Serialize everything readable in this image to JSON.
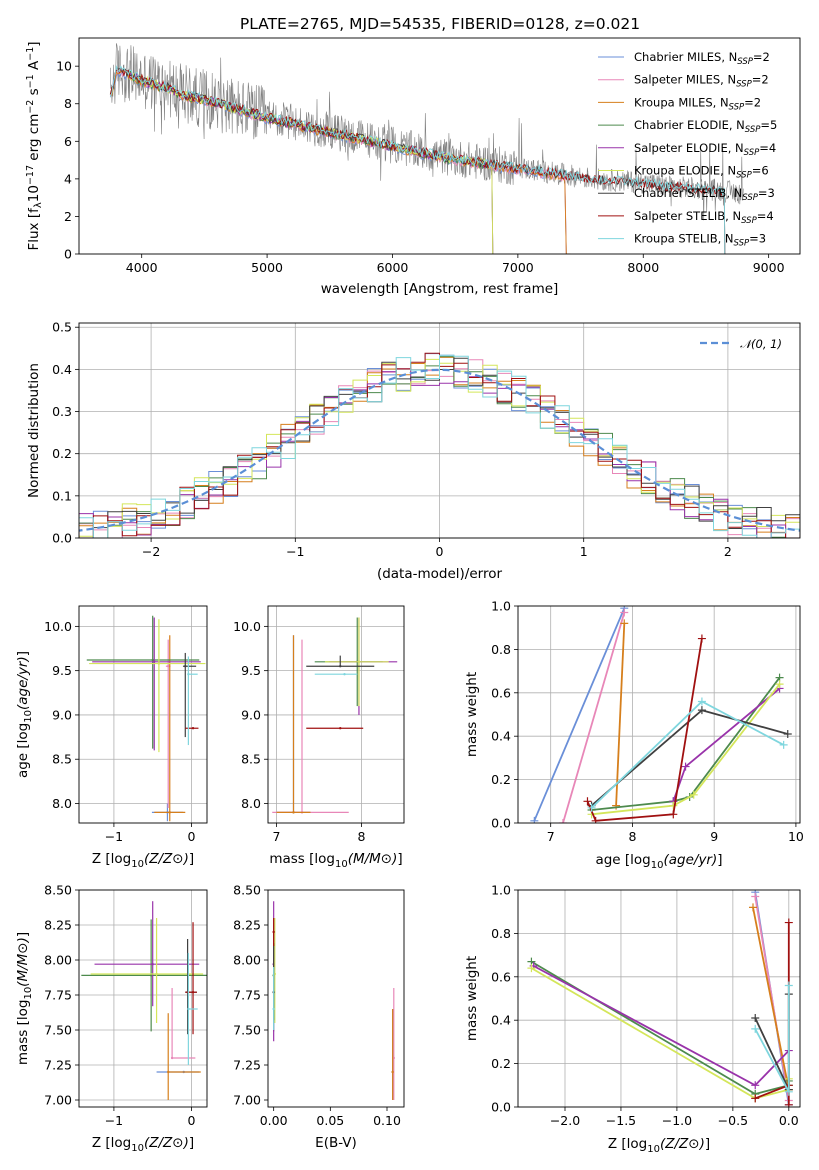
{
  "figure": {
    "title": "PLATE=2765, MJD=54535, FIBERID=0128, z=0.021"
  },
  "chart_data": [
    {
      "id": "spectrum",
      "type": "line",
      "xlabel": "wavelength [Angstrom, rest frame]",
      "ylabel": "Flux [f_λ10^-17 erg cm^-2 s^-1 A^-1]",
      "xlim": [
        3500,
        9250
      ],
      "ylim": [
        0,
        11.5
      ],
      "xticks": [
        4000,
        5000,
        6000,
        7000,
        8000,
        9000
      ],
      "yticks": [
        0,
        2,
        4,
        6,
        8,
        10
      ],
      "grid": false,
      "legend_position": "top-right",
      "observed": {
        "color": "#808080",
        "x": [
          3750,
          3800,
          3900,
          4000,
          4100,
          4200,
          4300,
          4400,
          4500,
          4600,
          4700,
          4800,
          4900,
          5000,
          5200,
          5400,
          5600,
          5800,
          6000,
          6200,
          6400,
          6600,
          6800,
          7000,
          7200,
          7400,
          7600,
          7800,
          8000,
          8200,
          8400,
          8600,
          8800
        ],
        "y": [
          8.5,
          9.8,
          9.6,
          9.3,
          9.1,
          8.9,
          8.6,
          8.4,
          8.3,
          8.1,
          7.9,
          7.7,
          7.5,
          7.3,
          7.0,
          6.7,
          6.4,
          6.1,
          5.8,
          5.5,
          5.2,
          5.0,
          4.8,
          4.6,
          4.4,
          4.2,
          4.0,
          3.9,
          3.8,
          3.6,
          3.5,
          3.4,
          3.2
        ]
      },
      "models": [
        {
          "name": "Chabrier MILES, N_SSP=2",
          "color": "#6a8fd8",
          "range": [
            3750,
            7420
          ]
        },
        {
          "name": "Salpeter MILES, N_SSP=2",
          "color": "#e887b8",
          "range": [
            3750,
            7420
          ]
        },
        {
          "name": "Kroupa MILES, N_SSP=2",
          "color": "#d67f1c",
          "range": [
            3750,
            7420
          ]
        },
        {
          "name": "Chabrier ELODIE, N_SSP=5",
          "color": "#4d8a4d",
          "range": [
            3900,
            6800
          ]
        },
        {
          "name": "Salpeter ELODIE, N_SSP=4",
          "color": "#9933aa",
          "range": [
            3900,
            6800
          ]
        },
        {
          "name": "Kroupa ELODIE, N_SSP=6",
          "color": "#d4e65a",
          "range": [
            3900,
            6800
          ]
        },
        {
          "name": "Chabrier STELIB, N_SSP=3",
          "color": "#404040",
          "range": [
            3750,
            8650
          ]
        },
        {
          "name": "Salpeter STELIB, N_SSP=4",
          "color": "#a01010",
          "range": [
            3750,
            8650
          ]
        },
        {
          "name": "Kroupa STELIB, N_SSP=3",
          "color": "#7fd6de",
          "range": [
            3750,
            8650
          ]
        }
      ]
    },
    {
      "id": "residuals",
      "type": "line",
      "xlabel": "(data-model)/error",
      "ylabel": "Normed distribution",
      "xlim": [
        -2.5,
        2.5
      ],
      "ylim": [
        0,
        0.51
      ],
      "xticks": [
        -2,
        -1,
        0,
        1,
        2
      ],
      "yticks": [
        0.0,
        0.1,
        0.2,
        0.3,
        0.4,
        0.5
      ],
      "grid": true,
      "legend_position": "top-right",
      "reference": {
        "name": "𝒩(0, 1)",
        "color": "#5b8fd6",
        "style": "dashed"
      },
      "bin_width": 0.1
    },
    {
      "id": "age_vs_Z",
      "type": "scatter",
      "xlabel": "Z [log10(Z/Z⊙)]",
      "ylabel": "age  [log10(age/yr)]",
      "xlim": [
        -1.45,
        0.2
      ],
      "ylim": [
        7.78,
        10.23
      ],
      "xticks": [
        -1,
        0
      ],
      "yticks": [
        8.0,
        8.5,
        9.0,
        9.5,
        10.0
      ],
      "grid": true,
      "points": [
        {
          "color": "#6a8fd8",
          "x": -0.31,
          "y": 7.9,
          "xerr": [
            0.2,
            0.2
          ],
          "yerr": [
            0.1,
            0.1
          ]
        },
        {
          "color": "#e887b8",
          "x": -0.3,
          "y": 9.55,
          "xerr": [
            0.03,
            0.03
          ],
          "yerr": [
            1.6,
            0.3
          ]
        },
        {
          "color": "#d67f1c",
          "x": -0.28,
          "y": 7.9,
          "xerr": [
            0.2,
            0.2
          ],
          "yerr": [
            0.1,
            2.0
          ]
        },
        {
          "color": "#4d8a4d",
          "x": -0.5,
          "y": 9.62,
          "xerr": [
            0.85,
            0.6
          ],
          "yerr": [
            1.0,
            0.5
          ]
        },
        {
          "color": "#9933aa",
          "x": -0.48,
          "y": 9.6,
          "xerr": [
            0.8,
            0.6
          ],
          "yerr": [
            1.0,
            0.5
          ]
        },
        {
          "color": "#d4e65a",
          "x": -0.42,
          "y": 9.58,
          "xerr": [
            0.9,
            0.6
          ],
          "yerr": [
            1.0,
            0.5
          ]
        },
        {
          "color": "#404040",
          "x": -0.08,
          "y": 9.55,
          "xerr": [
            0.03,
            0.14
          ],
          "yerr": [
            0.8,
            0.15
          ]
        },
        {
          "color": "#a01010",
          "x": 0.02,
          "y": 8.85,
          "xerr": [
            0.1,
            0.07
          ],
          "yerr": [
            0.0,
            0.0
          ]
        },
        {
          "color": "#7fd6de",
          "x": -0.04,
          "y": 9.46,
          "xerr": [
            0.0,
            0.12
          ],
          "yerr": [
            0.8,
            0.2
          ]
        }
      ]
    },
    {
      "id": "age_vs_mass",
      "type": "scatter",
      "xlabel": "mass [log10(M/M⊙)]",
      "ylabel": "",
      "xlim": [
        6.9,
        8.5
      ],
      "ylim": [
        7.78,
        10.23
      ],
      "xticks": [
        7,
        8
      ],
      "yticks": [
        8.0,
        8.5,
        9.0,
        9.5,
        10.0
      ],
      "grid": true,
      "points": [
        {
          "color": "#6a8fd8",
          "x": 7.2,
          "y": 7.9,
          "xerr": [
            0.2,
            0.2
          ],
          "yerr": [
            0.0,
            2.0
          ]
        },
        {
          "color": "#e887b8",
          "x": 7.3,
          "y": 7.9,
          "xerr": [
            0.35,
            0.55
          ],
          "yerr": [
            0.0,
            1.95
          ]
        },
        {
          "color": "#d67f1c",
          "x": 7.2,
          "y": 7.9,
          "xerr": [
            0.2,
            0.2
          ],
          "yerr": [
            0.0,
            2.0
          ]
        },
        {
          "color": "#4d8a4d",
          "x": 7.95,
          "y": 9.6,
          "xerr": [
            0.5,
            0.3
          ],
          "yerr": [
            0.5,
            0.5
          ]
        },
        {
          "color": "#9933aa",
          "x": 7.97,
          "y": 9.6,
          "xerr": [
            0.35,
            0.45
          ],
          "yerr": [
            0.6,
            0.5
          ]
        },
        {
          "color": "#d4e65a",
          "x": 7.97,
          "y": 9.6,
          "xerr": [
            0.4,
            0.35
          ],
          "yerr": [
            0.5,
            0.5
          ]
        },
        {
          "color": "#404040",
          "x": 7.75,
          "y": 9.55,
          "xerr": [
            0.4,
            0.4
          ],
          "yerr": [
            0.0,
            0.12
          ]
        },
        {
          "color": "#a01010",
          "x": 7.75,
          "y": 8.85,
          "xerr": [
            0.4,
            0.27
          ],
          "yerr": [
            0.0,
            0.0
          ]
        },
        {
          "color": "#7fd6de",
          "x": 7.8,
          "y": 9.46,
          "xerr": [
            0.35,
            0.15
          ],
          "yerr": [
            0.0,
            0.0
          ]
        }
      ]
    },
    {
      "id": "weight_vs_age",
      "type": "line",
      "xlabel": "age  [log10(age/yr)]",
      "ylabel": "mass weight",
      "xlim": [
        6.6,
        10.05
      ],
      "ylim": [
        0,
        1
      ],
      "xticks": [
        7,
        8,
        9,
        10
      ],
      "yticks": [
        0.0,
        0.2,
        0.4,
        0.6,
        0.8,
        1.0
      ],
      "grid": true,
      "series": [
        {
          "color": "#6a8fd8",
          "x": [
            6.8,
            7.9
          ],
          "y": [
            0.01,
            0.99
          ]
        },
        {
          "color": "#e887b8",
          "x": [
            7.15,
            7.9
          ],
          "y": [
            0.0,
            0.97
          ]
        },
        {
          "color": "#d67f1c",
          "x": [
            7.8,
            7.9
          ],
          "y": [
            0.08,
            0.92
          ]
        },
        {
          "color": "#4d8a4d",
          "x": [
            7.5,
            8.5,
            8.7,
            9.8
          ],
          "y": [
            0.06,
            0.1,
            0.12,
            0.67
          ]
        },
        {
          "color": "#9933aa",
          "x": [
            8.5,
            8.65,
            9.8
          ],
          "y": [
            0.1,
            0.26,
            0.62
          ]
        },
        {
          "color": "#d4e65a",
          "x": [
            7.5,
            8.5,
            8.75,
            9.8
          ],
          "y": [
            0.04,
            0.08,
            0.13,
            0.64
          ]
        },
        {
          "color": "#404040",
          "x": [
            7.5,
            8.85,
            9.9
          ],
          "y": [
            0.08,
            0.52,
            0.41
          ]
        },
        {
          "color": "#a01010",
          "x": [
            7.45,
            7.55,
            8.5,
            8.85
          ],
          "y": [
            0.1,
            0.01,
            0.04,
            0.85
          ]
        },
        {
          "color": "#7fd6de",
          "x": [
            7.5,
            8.85,
            9.85
          ],
          "y": [
            0.07,
            0.56,
            0.36
          ]
        }
      ]
    },
    {
      "id": "mass_vs_Z",
      "type": "scatter",
      "xlabel": "Z [log10(Z/Z⊙)]",
      "ylabel": "mass [log10(M/M⊙)]",
      "xlim": [
        -1.45,
        0.2
      ],
      "ylim": [
        6.95,
        8.5
      ],
      "xticks": [
        -1,
        0
      ],
      "yticks": [
        7.0,
        7.25,
        7.5,
        7.75,
        8.0,
        8.25,
        8.5
      ],
      "grid": true,
      "points": [
        {
          "color": "#6a8fd8",
          "x": -0.1,
          "y": 7.2,
          "xerr": [
            0.35,
            0.2
          ],
          "yerr": [
            0.0,
            0.0
          ]
        },
        {
          "color": "#e887b8",
          "x": -0.25,
          "y": 7.3,
          "xerr": [
            0.0,
            0.3
          ],
          "yerr": [
            0.0,
            0.5
          ]
        },
        {
          "color": "#d67f1c",
          "x": -0.3,
          "y": 7.2,
          "xerr": [
            0.0,
            0.42
          ],
          "yerr": [
            0.2,
            0.42
          ]
        },
        {
          "color": "#4d8a4d",
          "x": -0.52,
          "y": 7.89,
          "xerr": [
            0.9,
            0.72
          ],
          "yerr": [
            0.4,
            0.4
          ]
        },
        {
          "color": "#9933aa",
          "x": -0.5,
          "y": 7.97,
          "xerr": [
            0.75,
            0.6
          ],
          "yerr": [
            0.3,
            0.45
          ]
        },
        {
          "color": "#d4e65a",
          "x": -0.45,
          "y": 7.9,
          "xerr": [
            0.85,
            0.6
          ],
          "yerr": [
            0.35,
            0.4
          ]
        },
        {
          "color": "#404040",
          "x": -0.05,
          "y": 7.77,
          "xerr": [
            0.03,
            0.12
          ],
          "yerr": [
            0.3,
            0.38
          ]
        },
        {
          "color": "#a01010",
          "x": 0.02,
          "y": 7.77,
          "xerr": [
            0.1,
            0.05
          ],
          "yerr": [
            0.3,
            0.5
          ]
        },
        {
          "color": "#7fd6de",
          "x": -0.04,
          "y": 7.65,
          "xerr": [
            0.0,
            0.12
          ],
          "yerr": [
            0.4,
            0.4
          ]
        }
      ]
    },
    {
      "id": "mass_vs_EBV",
      "type": "scatter",
      "xlabel": "E(B-V)",
      "ylabel": "",
      "xlim": [
        -0.005,
        0.115
      ],
      "ylim": [
        6.95,
        8.5
      ],
      "xticks": [
        0.0,
        0.05,
        0.1
      ],
      "xticklabels": [
        "0.00",
        "0.05",
        "0.10"
      ],
      "yticks": [
        7.0,
        7.25,
        7.5,
        7.75,
        8.0,
        8.25,
        8.5
      ],
      "grid": false,
      "points": [
        {
          "color": "#6a8fd8",
          "x": 0.105,
          "y": 7.2,
          "yerr": [
            0.2,
            0.45
          ]
        },
        {
          "color": "#e887b8",
          "x": 0.106,
          "y": 7.3,
          "yerr": [
            0.3,
            0.5
          ]
        },
        {
          "color": "#d67f1c",
          "x": 0.105,
          "y": 7.2,
          "yerr": [
            0.2,
            0.45
          ]
        },
        {
          "color": "#4d8a4d",
          "x": 0.0,
          "y": 7.89,
          "yerr": [
            0.4,
            0.3
          ]
        },
        {
          "color": "#9933aa",
          "x": 0.0,
          "y": 7.97,
          "yerr": [
            0.55,
            0.45
          ]
        },
        {
          "color": "#d4e65a",
          "x": 0.001,
          "y": 7.9,
          "yerr": [
            0.35,
            0.4
          ]
        },
        {
          "color": "#404040",
          "x": 0.0,
          "y": 7.77,
          "yerr": [
            0.2,
            0.35
          ]
        },
        {
          "color": "#a01010",
          "x": 0.0,
          "y": 8.2,
          "yerr": [
            0.1,
            0.1
          ]
        },
        {
          "color": "#7fd6de",
          "x": 0.0,
          "y": 7.65,
          "yerr": [
            0.15,
            0.3
          ]
        }
      ]
    },
    {
      "id": "weight_vs_Z",
      "type": "line",
      "xlabel": "Z [log10(Z/Z⊙)]",
      "ylabel": "mass weight",
      "xlim": [
        -2.42,
        0.1
      ],
      "ylim": [
        0,
        1
      ],
      "xticks": [
        -2.0,
        -1.5,
        -1.0,
        -0.5,
        0.0
      ],
      "xticklabels": [
        "−2.0",
        "−1.5",
        "−1.0",
        "−0.5",
        "0.0"
      ],
      "yticks": [
        0.0,
        0.2,
        0.4,
        0.6,
        0.8,
        1.0
      ],
      "grid": true,
      "series": [
        {
          "color": "#6a8fd8",
          "x": [
            -0.3,
            0.0
          ],
          "y": [
            0.99,
            0.01
          ]
        },
        {
          "color": "#e887b8",
          "x": [
            -0.3,
            0.0
          ],
          "y": [
            0.97,
            0.03
          ]
        },
        {
          "color": "#d67f1c",
          "x": [
            -0.32,
            0.0
          ],
          "y": [
            0.92,
            0.08
          ]
        },
        {
          "color": "#4d8a4d",
          "x": [
            -2.3,
            -0.3,
            0.0,
            0.0
          ],
          "y": [
            0.67,
            0.06,
            0.1,
            0.12
          ]
        },
        {
          "color": "#9933aa",
          "x": [
            -2.28,
            -0.3,
            0.0
          ],
          "y": [
            0.65,
            0.1,
            0.26
          ]
        },
        {
          "color": "#d4e65a",
          "x": [
            -2.3,
            -0.3,
            0.0,
            0.0
          ],
          "y": [
            0.64,
            0.04,
            0.08,
            0.13
          ]
        },
        {
          "color": "#404040",
          "x": [
            -0.3,
            0.0,
            0.0
          ],
          "y": [
            0.41,
            0.08,
            0.52
          ]
        },
        {
          "color": "#a01010",
          "x": [
            -0.3,
            0.0,
            0.0,
            0.0
          ],
          "y": [
            0.04,
            0.1,
            0.01,
            0.85
          ]
        },
        {
          "color": "#7fd6de",
          "x": [
            -0.3,
            0.0,
            0.0
          ],
          "y": [
            0.36,
            0.07,
            0.56
          ]
        }
      ]
    }
  ]
}
